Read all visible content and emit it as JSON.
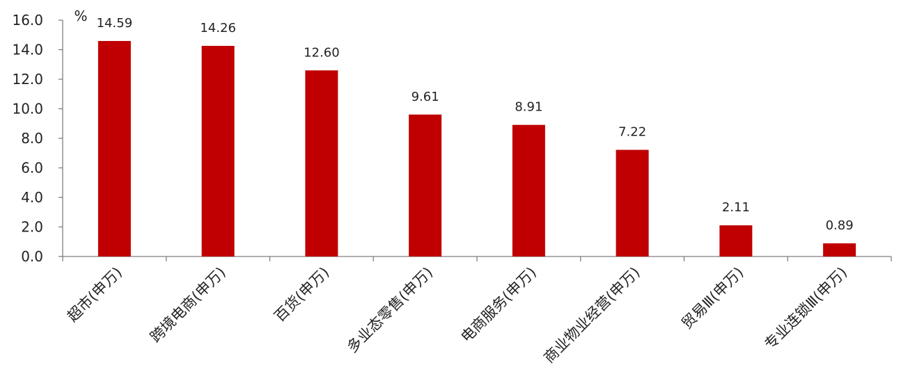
{
  "chart_data": {
    "type": "bar",
    "unit": "%",
    "categories": [
      "超市(申万)",
      "跨境电商(申万)",
      "百货(申万)",
      "多业态零售(申万)",
      "电商服务(申万)",
      "商业物业经营(申万)",
      "贸易Ⅲ(申万)",
      "专业连锁Ⅲ(申万)"
    ],
    "values": [
      14.59,
      14.26,
      12.6,
      9.61,
      8.91,
      7.22,
      2.11,
      0.89
    ],
    "value_labels": [
      "14.59",
      "14.26",
      "12.60",
      "9.61",
      "8.91",
      "7.22",
      "2.11",
      "0.89"
    ],
    "ylim": [
      0,
      16
    ],
    "yticks": [
      "0.0",
      "2.0",
      "4.0",
      "6.0",
      "8.0",
      "10.0",
      "12.0",
      "14.0",
      "16.0"
    ],
    "bar_color": "#c00000",
    "grid": false,
    "legend": "none"
  }
}
